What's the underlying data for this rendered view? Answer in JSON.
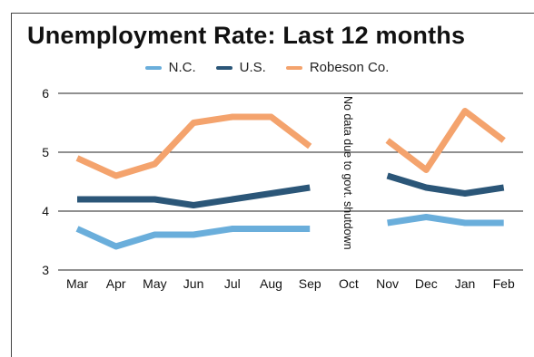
{
  "chart_data": {
    "type": "line",
    "title": "Unemployment Rate: Last 12 months",
    "categories": [
      "Mar",
      "Apr",
      "May",
      "Jun",
      "Jul",
      "Aug",
      "Sep",
      "Oct",
      "Nov",
      "Dec",
      "Jan",
      "Feb"
    ],
    "series": [
      {
        "name": "N.C.",
        "color": "#6aaedb",
        "values": [
          3.7,
          3.4,
          3.6,
          3.6,
          3.7,
          3.7,
          3.7,
          null,
          3.8,
          3.9,
          3.8,
          3.8
        ]
      },
      {
        "name": "U.S.",
        "color": "#2b5678",
        "values": [
          4.2,
          4.2,
          4.2,
          4.1,
          4.2,
          4.3,
          4.4,
          null,
          4.6,
          4.4,
          4.3,
          4.4
        ]
      },
      {
        "name": "Robeson Co.",
        "color": "#f4a36d",
        "values": [
          4.9,
          4.6,
          4.8,
          5.5,
          5.6,
          5.6,
          5.1,
          null,
          5.2,
          4.7,
          5.7,
          5.2
        ]
      }
    ],
    "ylim": [
      3,
      6
    ],
    "yticks": [
      3,
      4,
      5,
      6
    ],
    "grid": true,
    "legend_position": "top-center",
    "annotation": {
      "text": "No data due to govt. shutdown",
      "category": "Oct"
    }
  }
}
